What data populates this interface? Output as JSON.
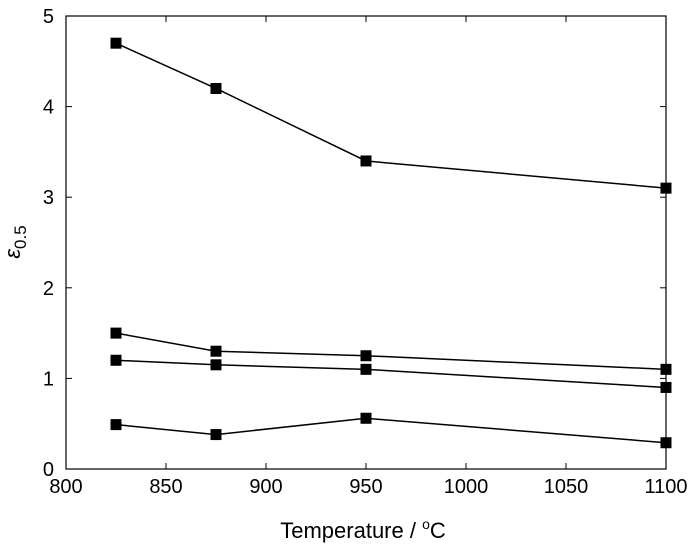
{
  "chart_data": {
    "type": "line",
    "title": "",
    "xlabel": "Temperature / °C",
    "xlabel_main": "Temperature / ",
    "xlabel_degree": "o",
    "xlabel_unit": "C",
    "ylabel": "ε0.5",
    "ylabel_symbol": "ε",
    "ylabel_subscript": "0.5",
    "xlim": [
      800,
      1100
    ],
    "ylim": [
      0,
      5
    ],
    "xticks": [
      800,
      850,
      900,
      950,
      1000,
      1050,
      1100
    ],
    "yticks": [
      0,
      1,
      2,
      3,
      4,
      5
    ],
    "grid": false,
    "marker": "square",
    "line_color": "#000000",
    "marker_color": "#000000",
    "x": [
      825,
      875,
      950,
      1100
    ],
    "series": [
      {
        "values": [
          4.7,
          4.2,
          3.4,
          3.1
        ]
      },
      {
        "values": [
          1.5,
          1.3,
          1.25,
          1.1
        ]
      },
      {
        "values": [
          1.2,
          1.15,
          1.1,
          0.9
        ]
      },
      {
        "values": [
          0.49,
          0.38,
          0.56,
          0.29
        ]
      }
    ]
  }
}
